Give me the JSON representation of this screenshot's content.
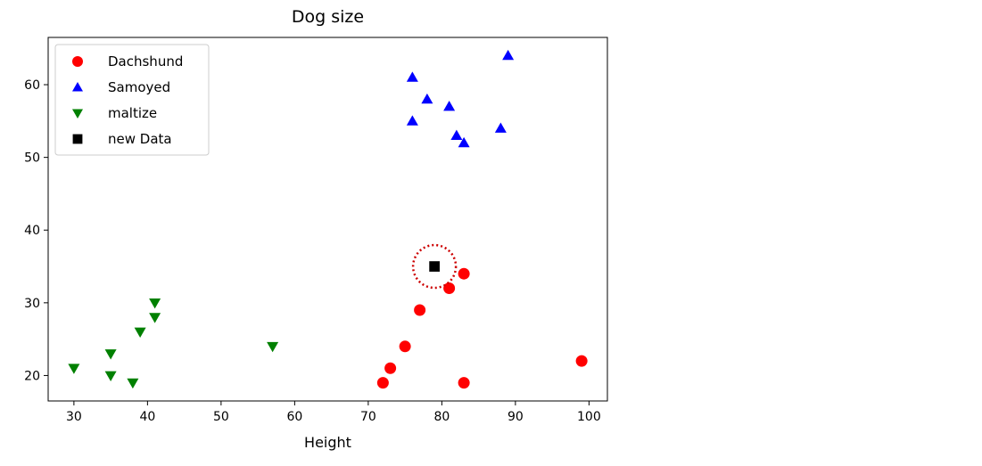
{
  "chart_data": {
    "type": "scatter",
    "title": "Dog size",
    "xlabel": "Height",
    "ylabel": "",
    "xlim": [
      26.5,
      102.5
    ],
    "ylim": [
      16.5,
      66.5
    ],
    "xticks": [
      30,
      40,
      50,
      60,
      70,
      80,
      90,
      100
    ],
    "yticks": [
      20,
      30,
      40,
      50,
      60
    ],
    "grid": false,
    "legend_position": "top-left",
    "series": [
      {
        "name": "Dachshund",
        "marker": "circle",
        "color": "#ff0000",
        "points": [
          [
            72,
            19
          ],
          [
            73,
            21
          ],
          [
            75,
            24
          ],
          [
            77,
            29
          ],
          [
            81,
            32
          ],
          [
            83,
            34
          ],
          [
            83,
            19
          ],
          [
            99,
            22
          ]
        ]
      },
      {
        "name": "Samoyed",
        "marker": "triangle-up",
        "color": "#0000ff",
        "points": [
          [
            76,
            61
          ],
          [
            78,
            58
          ],
          [
            81,
            57
          ],
          [
            89,
            64
          ],
          [
            76,
            55
          ],
          [
            82,
            53
          ],
          [
            83,
            52
          ],
          [
            88,
            54
          ]
        ]
      },
      {
        "name": "maltize",
        "marker": "triangle-down",
        "color": "#008000",
        "points": [
          [
            30,
            21
          ],
          [
            35,
            23
          ],
          [
            35,
            20
          ],
          [
            38,
            19
          ],
          [
            39,
            26
          ],
          [
            41,
            28
          ],
          [
            41,
            30
          ],
          [
            57,
            24
          ]
        ]
      },
      {
        "name": "new Data",
        "marker": "square",
        "color": "#000000",
        "points": [
          [
            79,
            35
          ]
        ]
      }
    ],
    "highlight": {
      "x": 79,
      "y": 35,
      "style": "dotted-circle",
      "color": "#cc0000"
    }
  }
}
